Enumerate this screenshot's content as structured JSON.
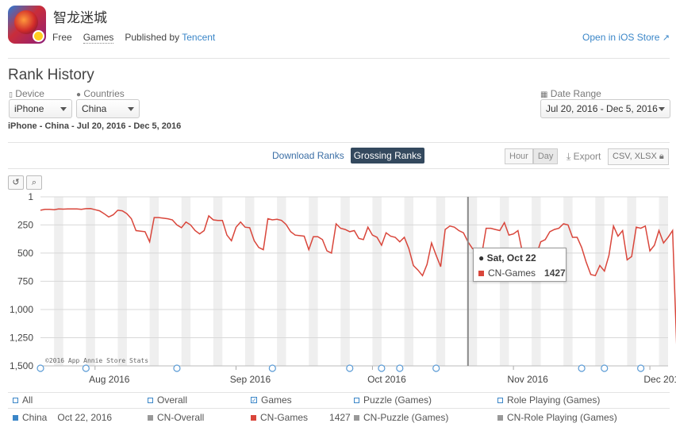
{
  "app": {
    "title": "智龙迷城",
    "price": "Free",
    "category": "Games",
    "published_prefix": "Published by",
    "publisher": "Tencent",
    "store_link": "Open in iOS Store"
  },
  "section_title": "Rank History",
  "filters": {
    "device_label": "Device",
    "device_value": "iPhone",
    "countries_label": "Countries",
    "countries_value": "China",
    "date_range_label": "Date Range",
    "date_range_value": "Jul 20, 2016 - Dec 5, 2016"
  },
  "subtitle": "iPhone - China - Jul 20, 2016 - Dec 5, 2016",
  "rank_tabs": [
    "Download Ranks",
    "Grossing Ranks"
  ],
  "active_rank_tab": "Grossing Ranks",
  "granularity": [
    "Hour",
    "Day"
  ],
  "export_label": "Export",
  "export_formats": "CSV, XLSX",
  "watermark": "©2016 App Annie Store Stats",
  "tooltip": {
    "date": "Sat, Oct 22",
    "series": "CN-Games",
    "value": "1427"
  },
  "legend": {
    "row1": [
      "All",
      "Overall",
      "Games",
      "Puzzle (Games)",
      "Role Playing (Games)"
    ],
    "country": "China",
    "date": "Oct 22, 2016",
    "row2": [
      "CN-Overall",
      "CN-Games",
      "CN-Puzzle (Games)",
      "CN-Role Playing (Games)"
    ],
    "games_value": "1427"
  },
  "colors": {
    "series": "#d9463b",
    "link": "#3a86c8",
    "active_tab": "#34495e"
  },
  "chart_data": {
    "type": "line",
    "series": [
      {
        "name": "CN-Games",
        "x": [
          "2016-07-20",
          "2016-07-22",
          "2016-07-24",
          "2016-07-26",
          "2016-07-28",
          "2016-07-30",
          "2016-08-01",
          "2016-08-03",
          "2016-08-05",
          "2016-08-07",
          "2016-08-09",
          "2016-08-11",
          "2016-08-13",
          "2016-08-15",
          "2016-08-17",
          "2016-08-19",
          "2016-08-21",
          "2016-08-23",
          "2016-08-25",
          "2016-08-27",
          "2016-08-29",
          "2016-08-31",
          "2016-09-02",
          "2016-09-04",
          "2016-09-06",
          "2016-09-08",
          "2016-09-10",
          "2016-09-12",
          "2016-09-14",
          "2016-09-16",
          "2016-09-18",
          "2016-09-20",
          "2016-09-22",
          "2016-09-24",
          "2016-09-26",
          "2016-09-28",
          "2016-09-30",
          "2016-10-02",
          "2016-10-04",
          "2016-10-06",
          "2016-10-08",
          "2016-10-10",
          "2016-10-12",
          "2016-10-14",
          "2016-10-16",
          "2016-10-18",
          "2016-10-20",
          "2016-10-22",
          "2016-10-24",
          "2016-10-26",
          "2016-10-28",
          "2016-10-30",
          "2016-11-01",
          "2016-11-03",
          "2016-11-05",
          "2016-11-07",
          "2016-11-09",
          "2016-11-11",
          "2016-11-13",
          "2016-11-15",
          "2016-11-17",
          "2016-11-19",
          "2016-11-21",
          "2016-11-23",
          "2016-11-25",
          "2016-11-27",
          "2016-11-29",
          "2016-12-01",
          "2016-12-03",
          "2016-12-05"
        ],
        "values": [
          130,
          110,
          120,
          100,
          160,
          100,
          170,
          300,
          380,
          190,
          200,
          280,
          240,
          330,
          220,
          360,
          260,
          440,
          230,
          350,
          180,
          390,
          210,
          330,
          280,
          330,
          230,
          350,
          300,
          320,
          360,
          380,
          400,
          450,
          650,
          430,
          520,
          280,
          380,
          620,
          360,
          470,
          600,
          560,
          900,
          310,
          740,
          1427,
          730,
          360,
          900,
          340,
          480,
          820,
          680,
          750,
          420,
          550,
          780,
          650,
          880,
          370,
          650,
          350,
          640,
          590,
          360,
          790,
          380,
          300
        ],
        "daily": [
          120,
          112,
          112,
          115,
          108,
          110,
          108,
          108,
          108,
          112,
          106,
          105,
          115,
          125,
          150,
          180,
          160,
          120,
          125,
          150,
          195,
          300,
          305,
          310,
          400,
          185,
          185,
          190,
          195,
          205,
          250,
          275,
          225,
          250,
          300,
          330,
          300,
          170,
          205,
          210,
          210,
          340,
          390,
          270,
          225,
          270,
          275,
          390,
          450,
          470,
          195,
          205,
          200,
          210,
          245,
          310,
          340,
          345,
          350,
          470,
          355,
          355,
          380,
          480,
          500,
          240,
          280,
          290,
          310,
          300,
          370,
          380,
          270,
          340,
          360,
          430,
          320,
          350,
          360,
          400,
          360,
          460,
          610,
          650,
          700,
          600,
          410,
          520,
          620,
          290,
          260,
          270,
          300,
          320,
          400,
          460,
          480,
          520,
          280,
          280,
          290,
          300,
          230,
          340,
          330,
          300,
          500,
          480,
          600,
          520,
          400,
          380,
          310,
          290,
          280,
          240,
          250,
          360,
          360,
          450,
          580,
          690,
          700,
          610,
          660,
          520,
          260,
          350,
          300,
          560,
          530,
          270,
          280,
          260,
          480,
          430,
          300,
          410,
          360,
          300,
          1460
        ]
      }
    ],
    "y_ticks": [
      "1",
      "250",
      "500",
      "750",
      "1,000",
      "1,250",
      "1,500"
    ],
    "x_ticks": [
      "Aug 2016",
      "Sep 2016",
      "Oct 2016",
      "Nov 2016",
      "Dec 2016"
    ],
    "ylim": [
      1500,
      1
    ],
    "y_reversed": true,
    "grid": true
  }
}
